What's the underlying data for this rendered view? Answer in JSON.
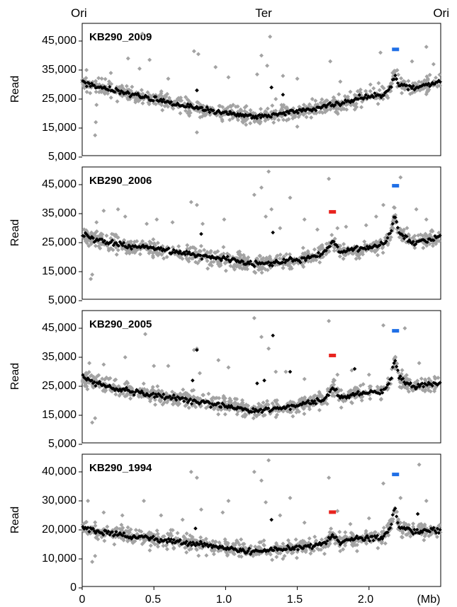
{
  "top_labels": {
    "left": "Ori",
    "middle": "Ter",
    "right": "Ori"
  },
  "x_unit": "(Mb)",
  "colors": {
    "gray_points": "#a3a3a3",
    "black_points": "#000000",
    "blue_marker": "#1f6fe6",
    "red_marker": "#e8231e"
  },
  "chart_data": [
    {
      "type": "scatter",
      "title": "KB290_2009",
      "ylabel": "Read",
      "ylim": [
        5000,
        50000
      ],
      "y_ticks": [
        "5,000",
        "15,000",
        "25,000",
        "35,000",
        "45,000"
      ],
      "xlim": [
        0,
        2.5
      ],
      "x_ticks": [],
      "baseline": [
        [
          0,
          31000
        ],
        [
          0.1,
          29500
        ],
        [
          0.3,
          27000
        ],
        [
          0.5,
          25000
        ],
        [
          0.7,
          23000
        ],
        [
          0.9,
          21000
        ],
        [
          1.05,
          20000
        ],
        [
          1.2,
          18800
        ],
        [
          1.3,
          19200
        ],
        [
          1.45,
          20500
        ],
        [
          1.6,
          21500
        ],
        [
          1.8,
          23500
        ],
        [
          1.95,
          25500
        ],
        [
          2.1,
          26500
        ],
        [
          2.15,
          29000
        ],
        [
          2.18,
          33000
        ],
        [
          2.21,
          30000
        ],
        [
          2.3,
          29000
        ],
        [
          2.5,
          31000
        ]
      ],
      "outliers": [
        [
          0.03,
          35000
        ],
        [
          0.09,
          12500
        ],
        [
          0.095,
          17000
        ],
        [
          0.1,
          23000
        ],
        [
          0.12,
          30000
        ],
        [
          0.2,
          34000
        ],
        [
          0.32,
          39000
        ],
        [
          0.4,
          35500
        ],
        [
          0.42,
          47500
        ],
        [
          0.47,
          38500
        ],
        [
          0.6,
          32000
        ],
        [
          0.78,
          41500
        ],
        [
          0.8,
          28000
        ],
        [
          0.81,
          40500
        ],
        [
          0.93,
          36000
        ],
        [
          1.02,
          32500
        ],
        [
          1.22,
          33500
        ],
        [
          1.25,
          40000
        ],
        [
          1.29,
          36500
        ],
        [
          1.31,
          46500
        ],
        [
          1.32,
          29000
        ],
        [
          1.35,
          25000
        ],
        [
          1.4,
          33000
        ],
        [
          1.5,
          32000
        ],
        [
          1.73,
          38000
        ],
        [
          1.8,
          31000
        ],
        [
          1.87,
          27500
        ],
        [
          2.01,
          30000
        ],
        [
          2.08,
          41000
        ],
        [
          2.3,
          38000
        ],
        [
          2.4,
          43000
        ],
        [
          2.45,
          37000
        ],
        [
          0.8,
          13500
        ],
        [
          1.5,
          15500
        ]
      ],
      "black_outliers": [
        [
          1.32,
          29000
        ],
        [
          1.4,
          26500
        ],
        [
          0.8,
          28000
        ]
      ],
      "markers": [
        {
          "color": "blue",
          "x": 2.185,
          "y": 42000
        }
      ]
    },
    {
      "type": "scatter",
      "title": "KB290_2006",
      "ylabel": "Read",
      "ylim": [
        5000,
        50000
      ],
      "y_ticks": [
        "5,000",
        "15,000",
        "25,000",
        "35,000",
        "45,000"
      ],
      "xlim": [
        0,
        2.5
      ],
      "x_ticks": [],
      "baseline": [
        [
          0,
          28000
        ],
        [
          0.1,
          26000
        ],
        [
          0.3,
          24000
        ],
        [
          0.5,
          23000
        ],
        [
          0.7,
          21500
        ],
        [
          0.9,
          20000
        ],
        [
          1.1,
          18500
        ],
        [
          1.2,
          17500
        ],
        [
          1.3,
          18000
        ],
        [
          1.45,
          19000
        ],
        [
          1.6,
          20000
        ],
        [
          1.7,
          22000
        ],
        [
          1.75,
          25500
        ],
        [
          1.8,
          22000
        ],
        [
          1.95,
          23000
        ],
        [
          2.1,
          24000
        ],
        [
          2.15,
          28000
        ],
        [
          2.18,
          35000
        ],
        [
          2.21,
          28000
        ],
        [
          2.3,
          25000
        ],
        [
          2.5,
          27000
        ]
      ],
      "outliers": [
        [
          0.06,
          12500
        ],
        [
          0.07,
          14000
        ],
        [
          0.1,
          32000
        ],
        [
          0.15,
          36000
        ],
        [
          0.25,
          36500
        ],
        [
          0.3,
          34000
        ],
        [
          0.45,
          31500
        ],
        [
          0.52,
          33000
        ],
        [
          0.63,
          32000
        ],
        [
          0.76,
          39000
        ],
        [
          0.8,
          38000
        ],
        [
          0.84,
          31500
        ],
        [
          0.99,
          33000
        ],
        [
          1.2,
          41500
        ],
        [
          1.25,
          44000
        ],
        [
          1.28,
          34000
        ],
        [
          1.3,
          49500
        ],
        [
          1.32,
          36500
        ],
        [
          1.38,
          30000
        ],
        [
          1.45,
          40500
        ],
        [
          1.55,
          33000
        ],
        [
          1.64,
          29500
        ],
        [
          1.72,
          47000
        ],
        [
          1.78,
          30000
        ],
        [
          1.84,
          30500
        ],
        [
          1.98,
          31000
        ],
        [
          2.05,
          34000
        ],
        [
          2.1,
          38000
        ],
        [
          2.22,
          47500
        ],
        [
          2.33,
          36500
        ],
        [
          2.4,
          33000
        ]
      ],
      "black_outliers": [
        [
          1.33,
          28500
        ],
        [
          0.83,
          28000
        ]
      ],
      "markers": [
        {
          "color": "red",
          "x": 1.745,
          "y": 35500
        },
        {
          "color": "blue",
          "x": 2.185,
          "y": 44500
        }
      ]
    },
    {
      "type": "scatter",
      "title": "KB290_2005",
      "ylabel": "Read",
      "ylim": [
        5000,
        50000
      ],
      "y_ticks": [
        "5,000",
        "15,000",
        "25,000",
        "35,000",
        "45,000"
      ],
      "xlim": [
        0,
        2.5
      ],
      "x_ticks": [],
      "baseline": [
        [
          0,
          28000
        ],
        [
          0.1,
          26000
        ],
        [
          0.3,
          23500
        ],
        [
          0.5,
          22000
        ],
        [
          0.7,
          20500
        ],
        [
          0.9,
          19000
        ],
        [
          1.1,
          17500
        ],
        [
          1.2,
          16500
        ],
        [
          1.3,
          17000
        ],
        [
          1.45,
          18000
        ],
        [
          1.6,
          19500
        ],
        [
          1.7,
          20500
        ],
        [
          1.75,
          25000
        ],
        [
          1.8,
          21000
        ],
        [
          1.95,
          22500
        ],
        [
          2.1,
          23500
        ],
        [
          2.15,
          27000
        ],
        [
          2.18,
          34500
        ],
        [
          2.21,
          28000
        ],
        [
          2.3,
          25000
        ],
        [
          2.5,
          26000
        ]
      ],
      "outliers": [
        [
          0.05,
          33000
        ],
        [
          0.07,
          12500
        ],
        [
          0.09,
          14000
        ],
        [
          0.15,
          32500
        ],
        [
          0.3,
          35000
        ],
        [
          0.44,
          43000
        ],
        [
          0.5,
          32000
        ],
        [
          0.6,
          32000
        ],
        [
          0.78,
          37500
        ],
        [
          0.8,
          38000
        ],
        [
          0.82,
          29500
        ],
        [
          0.95,
          34000
        ],
        [
          1.02,
          31500
        ],
        [
          1.2,
          48500
        ],
        [
          1.25,
          42000
        ],
        [
          1.3,
          38000
        ],
        [
          1.35,
          30000
        ],
        [
          1.42,
          30000
        ],
        [
          1.55,
          27500
        ],
        [
          1.72,
          47500
        ],
        [
          1.78,
          29000
        ],
        [
          1.88,
          30500
        ],
        [
          2.0,
          29000
        ],
        [
          2.1,
          46000
        ],
        [
          2.25,
          45000
        ],
        [
          2.35,
          33000
        ]
      ],
      "black_outliers": [
        [
          1.33,
          42500
        ],
        [
          1.22,
          26000
        ],
        [
          1.27,
          27000
        ],
        [
          1.45,
          30000
        ],
        [
          0.77,
          27000
        ],
        [
          0.8,
          37500
        ],
        [
          1.9,
          31000
        ]
      ],
      "markers": [
        {
          "color": "red",
          "x": 1.745,
          "y": 35500
        },
        {
          "color": "blue",
          "x": 2.185,
          "y": 44000
        }
      ]
    },
    {
      "type": "scatter",
      "title": "KB290_1994",
      "ylabel": "Read",
      "ylim": [
        0,
        44000
      ],
      "y_ticks": [
        "0",
        "10,000",
        "20,000",
        "30,000",
        "40,000"
      ],
      "xlim": [
        0,
        2.5
      ],
      "x_ticks": [
        "0",
        "0.5",
        "1.0",
        "1.5",
        "2.0"
      ],
      "baseline": [
        [
          0,
          21000
        ],
        [
          0.1,
          19500
        ],
        [
          0.3,
          18000
        ],
        [
          0.5,
          17000
        ],
        [
          0.7,
          15500
        ],
        [
          0.9,
          14500
        ],
        [
          1.1,
          13000
        ],
        [
          1.2,
          12500
        ],
        [
          1.3,
          13000
        ],
        [
          1.45,
          13800
        ],
        [
          1.6,
          14500
        ],
        [
          1.7,
          15500
        ],
        [
          1.75,
          18500
        ],
        [
          1.8,
          15500
        ],
        [
          1.95,
          17000
        ],
        [
          2.1,
          17500
        ],
        [
          2.15,
          21000
        ],
        [
          2.18,
          27500
        ],
        [
          2.21,
          21000
        ],
        [
          2.3,
          19500
        ],
        [
          2.5,
          20000
        ]
      ],
      "outliers": [
        [
          0.04,
          30000
        ],
        [
          0.07,
          9000
        ],
        [
          0.09,
          11000
        ],
        [
          0.15,
          26000
        ],
        [
          0.28,
          25000
        ],
        [
          0.43,
          30000
        ],
        [
          0.55,
          25000
        ],
        [
          0.7,
          23500
        ],
        [
          0.76,
          40000
        ],
        [
          0.8,
          38000
        ],
        [
          0.83,
          27000
        ],
        [
          0.98,
          26000
        ],
        [
          1.02,
          30000
        ],
        [
          1.2,
          40000
        ],
        [
          1.25,
          37000
        ],
        [
          1.3,
          44000
        ],
        [
          1.28,
          29500
        ],
        [
          1.38,
          25000
        ],
        [
          1.45,
          31000
        ],
        [
          1.55,
          22500
        ],
        [
          1.72,
          38000
        ],
        [
          1.78,
          26500
        ],
        [
          1.87,
          22000
        ],
        [
          2.0,
          24000
        ],
        [
          2.1,
          36000
        ],
        [
          2.22,
          31000
        ],
        [
          2.35,
          42500
        ],
        [
          2.4,
          30000
        ]
      ],
      "black_outliers": [
        [
          1.32,
          23500
        ],
        [
          2.34,
          25500
        ],
        [
          0.79,
          20500
        ]
      ],
      "markers": [
        {
          "color": "red",
          "x": 1.745,
          "y": 26000
        },
        {
          "color": "blue",
          "x": 2.185,
          "y": 39000
        }
      ]
    }
  ]
}
